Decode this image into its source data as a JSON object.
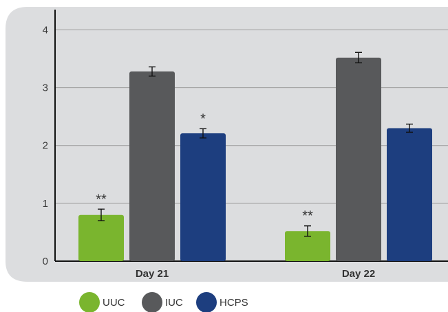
{
  "chart_data": {
    "type": "bar",
    "categories": [
      "Day 21",
      "Day 22"
    ],
    "series": [
      {
        "name": "UUC",
        "color": "#7ab52e",
        "values": [
          0.8,
          0.52
        ],
        "errors": [
          0.1,
          0.09
        ]
      },
      {
        "name": "IUC",
        "color": "#58595b",
        "values": [
          3.28,
          3.52
        ],
        "errors": [
          0.08,
          0.09
        ]
      },
      {
        "name": "HCPS",
        "color": "#1d3e7f",
        "values": [
          2.21,
          2.3
        ],
        "errors": [
          0.08,
          0.07
        ]
      }
    ],
    "annotations": [
      {
        "category": "Day 21",
        "series": "UUC",
        "text": "**"
      },
      {
        "category": "Day 21",
        "series": "HCPS",
        "text": "*"
      },
      {
        "category": "Day 22",
        "series": "UUC",
        "text": "**"
      }
    ],
    "yticks": [
      0,
      1,
      2,
      3,
      4
    ],
    "ylim": [
      0,
      4.35
    ],
    "grid": true,
    "legend_position": "bottom-left",
    "background_color": "#dcdddf"
  }
}
